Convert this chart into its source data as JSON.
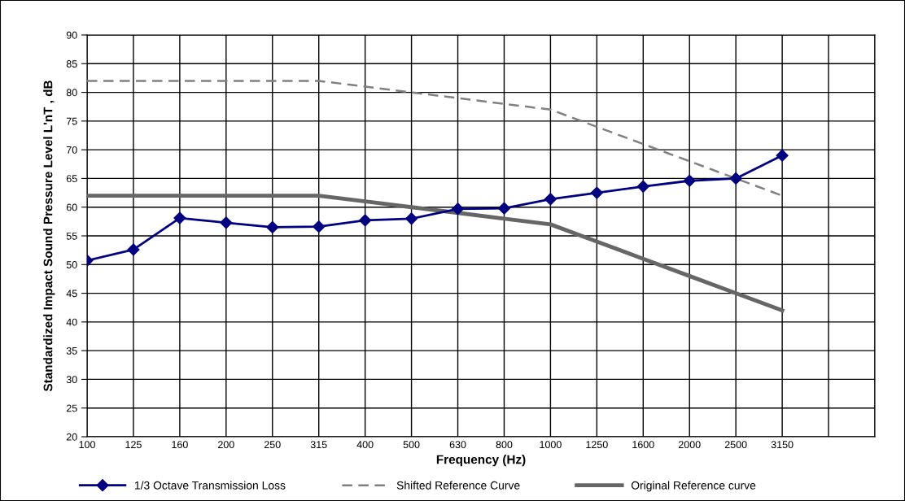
{
  "chart_data": {
    "type": "line",
    "xlabel": "Frequency (Hz)",
    "ylabel": "Standardized Impact Sound Pressure Level L'nT , dB",
    "categories": [
      "100",
      "125",
      "160",
      "200",
      "250",
      "315",
      "400",
      "500",
      "630",
      "800",
      "1000",
      "1250",
      "1600",
      "2000",
      "2500",
      "3150",
      null,
      null
    ],
    "series": [
      {
        "name": "1/3 Octave Transmission Loss",
        "color": "#000080",
        "marker": "diamond",
        "line_style": "solid",
        "values": [
          50.7,
          52.6,
          58.1,
          57.3,
          56.5,
          56.6,
          57.7,
          58.0,
          59.7,
          59.8,
          61.4,
          62.5,
          63.6,
          64.6,
          65.0,
          69.0,
          null,
          null
        ]
      },
      {
        "name": "Shifted Reference Curve",
        "color": "#808080",
        "marker": "none",
        "line_style": "dashed",
        "values": [
          82,
          82,
          82,
          82,
          82,
          82,
          81,
          80,
          79,
          78,
          77,
          74,
          71,
          68,
          65,
          62,
          null,
          null
        ]
      },
      {
        "name": "Original Reference curve",
        "color": "#666666",
        "marker": "none",
        "line_style": "solid",
        "values": [
          62,
          62,
          62,
          62,
          62,
          62,
          61,
          60,
          59,
          58,
          57,
          54,
          51,
          48,
          45,
          42,
          null,
          null
        ]
      }
    ],
    "ylim": [
      20,
      90
    ],
    "yticks": [
      20,
      25,
      30,
      35,
      40,
      45,
      50,
      55,
      60,
      65,
      70,
      75,
      80,
      85,
      90
    ],
    "grid": true,
    "legend": "bottom"
  }
}
